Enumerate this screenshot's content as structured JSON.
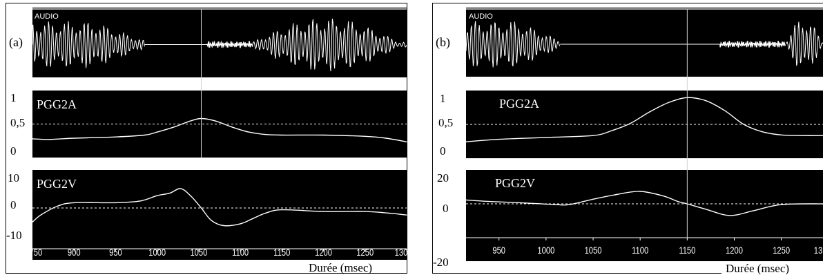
{
  "panels": [
    {
      "id": "a",
      "panel_label": "(a)",
      "audio_label": "AUDIO",
      "pgg2a_label": "PGG2A",
      "pgg2v_label": "PGG2V",
      "pgg2a_ticks": [
        "1",
        "0,5",
        "0"
      ],
      "pgg2v_ticks": [
        "10",
        "0",
        "-10"
      ],
      "x_ticks": [
        "50",
        "900",
        "950",
        "1000",
        "1050",
        "1100",
        "1150",
        "1200",
        "1250",
        "130"
      ],
      "duration_label": "Durée  (msec)"
    },
    {
      "id": "b",
      "panel_label": "(b)",
      "audio_label": "AUDIO",
      "pgg2a_label": "PGG2A",
      "pgg2v_label": "PGG2V",
      "pgg2a_ticks": [
        "1",
        "0,5",
        "0"
      ],
      "pgg2v_ticks": [
        "20",
        "0",
        "-20"
      ],
      "x_ticks": [
        "950",
        "1000",
        "1050",
        "1100",
        "1150",
        "1200",
        "1250",
        "13"
      ],
      "duration_label": "Durée  (msec)"
    }
  ],
  "chart_data": [
    {
      "type": "line",
      "panel": "a",
      "xlabel": "Durée  (msec)",
      "xlim": [
        850,
        1300
      ],
      "cursor_x": 1053,
      "series": [
        {
          "name": "PGG2A",
          "ylim": [
            0,
            1
          ],
          "ref_line": 0.5,
          "x": [
            850,
            870,
            900,
            950,
            985,
            1000,
            1020,
            1040,
            1053,
            1070,
            1090,
            1110,
            1130,
            1150,
            1200,
            1250,
            1275,
            1300
          ],
          "y": [
            0.26,
            0.25,
            0.27,
            0.29,
            0.32,
            0.37,
            0.45,
            0.55,
            0.59,
            0.55,
            0.45,
            0.37,
            0.33,
            0.32,
            0.32,
            0.3,
            0.27,
            0.21
          ]
        },
        {
          "name": "PGG2V",
          "ylim": [
            -10,
            10
          ],
          "ref_line": 0,
          "x": [
            850,
            860,
            880,
            900,
            950,
            980,
            1000,
            1015,
            1028,
            1040,
            1053,
            1065,
            1080,
            1100,
            1115,
            1130,
            1150,
            1200,
            1250,
            1280,
            1300
          ],
          "y": [
            -4,
            -2,
            0.5,
            1.5,
            1.5,
            2,
            3.5,
            4.2,
            5.5,
            3.5,
            0,
            -3.5,
            -5,
            -4.5,
            -3,
            -1.5,
            -0.5,
            -1,
            -1,
            -1.5,
            -2
          ]
        }
      ],
      "audio_segments": [
        {
          "x0": 850,
          "x1": 985,
          "kind": "voiced"
        },
        {
          "x0": 985,
          "x1": 1060,
          "kind": "silence"
        },
        {
          "x0": 1060,
          "x1": 1115,
          "kind": "noise"
        },
        {
          "x0": 1115,
          "x1": 1300,
          "kind": "voiced"
        }
      ]
    },
    {
      "type": "line",
      "panel": "b",
      "xlabel": "Durée  (msec)",
      "xlim": [
        915,
        1295
      ],
      "cursor_x": 1150,
      "series": [
        {
          "name": "PGG2A",
          "ylim": [
            0,
            1
          ],
          "ref_line": 0.5,
          "x": [
            915,
            950,
            1000,
            1050,
            1070,
            1090,
            1110,
            1130,
            1150,
            1170,
            1190,
            1210,
            1230,
            1250,
            1270,
            1295
          ],
          "y": [
            0.22,
            0.26,
            0.29,
            0.32,
            0.4,
            0.52,
            0.7,
            0.85,
            0.93,
            0.88,
            0.72,
            0.5,
            0.38,
            0.33,
            0.32,
            0.32
          ]
        },
        {
          "name": "PGG2V",
          "ylim": [
            -20,
            20
          ],
          "ref_line": 0,
          "x": [
            915,
            940,
            980,
            1010,
            1025,
            1050,
            1075,
            1100,
            1125,
            1140,
            1150,
            1170,
            1195,
            1220,
            1250,
            1295
          ],
          "y": [
            2.5,
            1.5,
            0.5,
            -0.5,
            -0.5,
            3,
            6,
            8,
            5,
            1.5,
            0,
            -3.5,
            -7.5,
            -4.5,
            -0.5,
            0
          ]
        }
      ],
      "audio_segments": [
        {
          "x0": 915,
          "x1": 1015,
          "kind": "voiced"
        },
        {
          "x0": 1015,
          "x1": 1185,
          "kind": "silence"
        },
        {
          "x0": 1185,
          "x1": 1255,
          "kind": "noise"
        },
        {
          "x0": 1255,
          "x1": 1295,
          "kind": "voiced"
        }
      ]
    }
  ]
}
